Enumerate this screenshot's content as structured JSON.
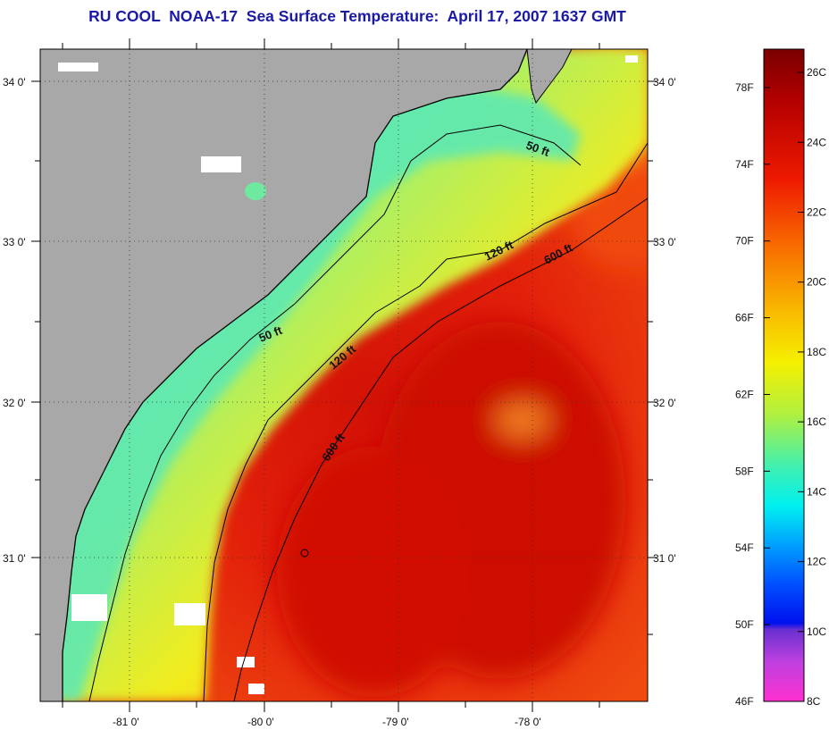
{
  "title": "RU COOL  NOAA-17  Sea Surface Temperature:  April 17, 2007 1637 GMT",
  "map": {
    "lat_labels": [
      {
        "label": "34 0'",
        "value": 34
      },
      {
        "label": "33 0'",
        "value": 33
      },
      {
        "label": "32 0'",
        "value": 32
      },
      {
        "label": "31 0'",
        "value": 31
      }
    ],
    "lon_labels": [
      {
        "label": "-81 0'",
        "value": -81
      },
      {
        "label": "-80 0'",
        "value": -80
      },
      {
        "label": "-79 0'",
        "value": -79
      },
      {
        "label": "-78 0'",
        "value": -78
      }
    ],
    "contour_labels": [
      {
        "text": "50 ft",
        "depth_ft": 50,
        "id": "ne"
      },
      {
        "text": "50 ft",
        "depth_ft": 50,
        "id": "sw"
      },
      {
        "text": "120 ft",
        "depth_ft": 120,
        "id": "ne"
      },
      {
        "text": "120 ft",
        "depth_ft": 120,
        "id": "sw"
      },
      {
        "text": "600 ft",
        "depth_ft": 600,
        "id": "ne"
      },
      {
        "text": "600 ft",
        "depth_ft": 600,
        "id": "sw"
      }
    ],
    "colors": {
      "land": "#a8a8a8",
      "cloud": "#ffffff",
      "warm_core": "#e01a08",
      "shelf": "#f0e020",
      "nearshore": "#40e0b0"
    }
  },
  "colorbar": {
    "fahrenheit": [
      "78F",
      "74F",
      "70F",
      "66F",
      "62F",
      "58F",
      "54F",
      "50F",
      "46F"
    ],
    "celsius": [
      "26C",
      "24C",
      "22C",
      "20C",
      "18C",
      "16C",
      "14C",
      "12C",
      "10C",
      "8C"
    ]
  }
}
